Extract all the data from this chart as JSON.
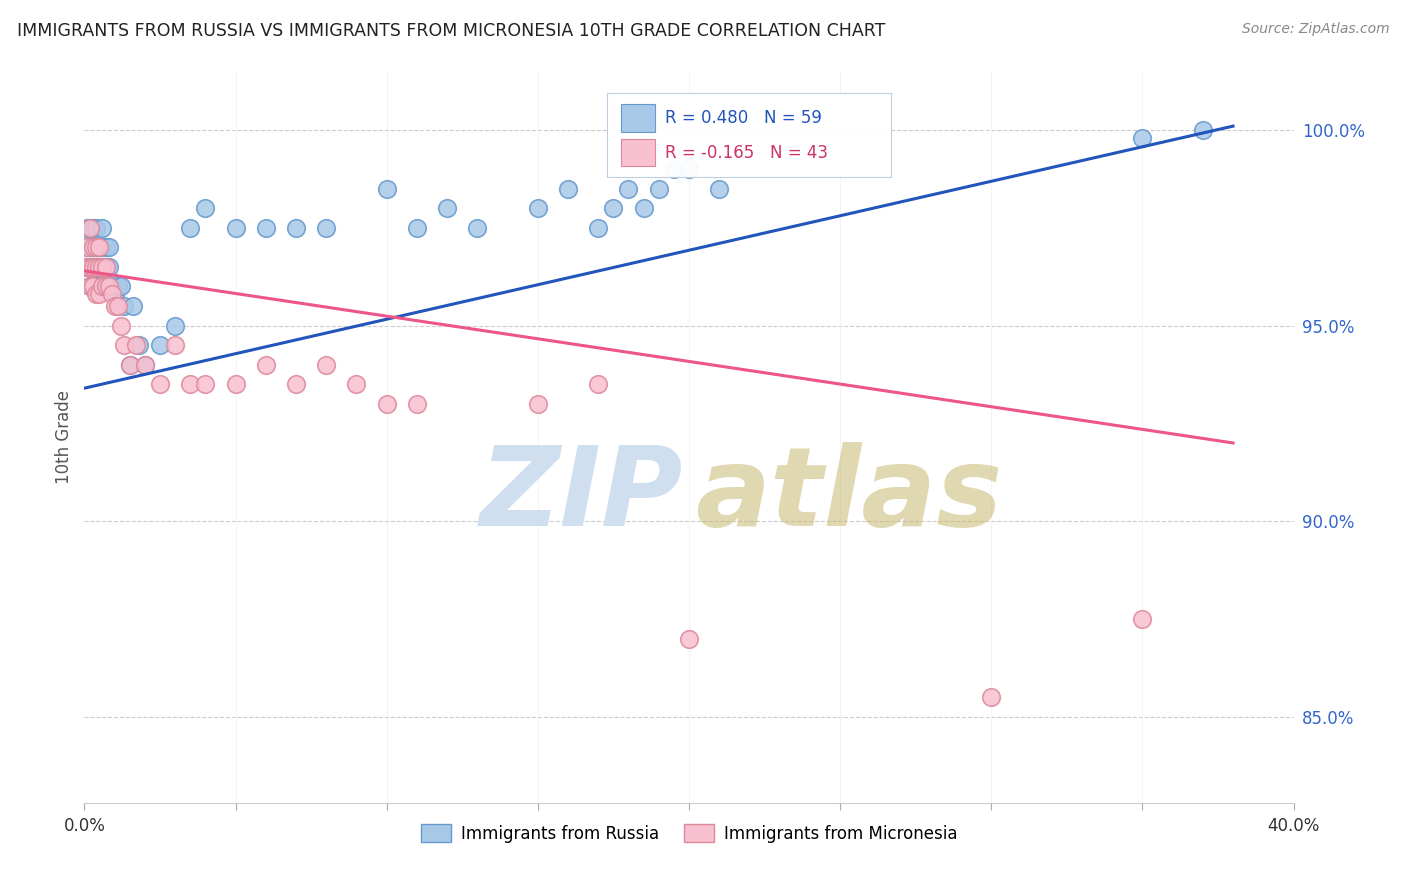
{
  "title": "IMMIGRANTS FROM RUSSIA VS IMMIGRANTS FROM MICRONESIA 10TH GRADE CORRELATION CHART",
  "source": "Source: ZipAtlas.com",
  "ylabel": "10th Grade",
  "xlim": [
    0.0,
    0.4
  ],
  "ylim": [
    0.828,
    1.015
  ],
  "ytick_values": [
    0.85,
    0.9,
    0.95,
    1.0
  ],
  "ytick_labels": [
    "85.0%",
    "90.0%",
    "95.0%",
    "100.0%"
  ],
  "russia_color": "#a8c8e8",
  "russia_edge_color": "#6699cc",
  "micronesia_color": "#f8c0d0",
  "micronesia_edge_color": "#dd8899",
  "russia_line_color": "#2255bb",
  "micronesia_line_color": "#ee5588",
  "russia_line_x0": 0.0,
  "russia_line_y0": 0.934,
  "russia_line_x1": 0.38,
  "russia_line_y1": 1.001,
  "micronesia_line_x0": 0.0,
  "micronesia_line_y0": 0.964,
  "micronesia_line_x1": 0.38,
  "micronesia_line_y1": 0.92,
  "watermark_zip_color": "#d0dff0",
  "watermark_atlas_color": "#c8b870",
  "legend_box_color": "#e8f0f8",
  "legend_box_edge": "#bbccdd",
  "legend_russia_text": "R = 0.480   N = 59",
  "legend_micronesia_text": "R = -0.165   N = 43",
  "russia_x": [
    0.001,
    0.001,
    0.001,
    0.002,
    0.002,
    0.002,
    0.002,
    0.003,
    0.003,
    0.003,
    0.003,
    0.004,
    0.004,
    0.004,
    0.004,
    0.005,
    0.005,
    0.005,
    0.006,
    0.006,
    0.006,
    0.007,
    0.007,
    0.007,
    0.008,
    0.008,
    0.009,
    0.01,
    0.011,
    0.012,
    0.013,
    0.015,
    0.016,
    0.018,
    0.02,
    0.025,
    0.03,
    0.035,
    0.04,
    0.05,
    0.06,
    0.07,
    0.08,
    0.1,
    0.11,
    0.12,
    0.13,
    0.15,
    0.16,
    0.17,
    0.175,
    0.18,
    0.185,
    0.19,
    0.195,
    0.2,
    0.21,
    0.35,
    0.37
  ],
  "russia_y": [
    0.97,
    0.975,
    0.965,
    0.96,
    0.97,
    0.975,
    0.965,
    0.965,
    0.97,
    0.96,
    0.975,
    0.965,
    0.97,
    0.975,
    0.96,
    0.96,
    0.97,
    0.965,
    0.965,
    0.97,
    0.975,
    0.965,
    0.97,
    0.96,
    0.965,
    0.97,
    0.96,
    0.958,
    0.96,
    0.96,
    0.955,
    0.94,
    0.955,
    0.945,
    0.94,
    0.945,
    0.95,
    0.975,
    0.98,
    0.975,
    0.975,
    0.975,
    0.975,
    0.985,
    0.975,
    0.98,
    0.975,
    0.98,
    0.985,
    0.975,
    0.98,
    0.985,
    0.98,
    0.985,
    0.99,
    0.99,
    0.985,
    0.998,
    1.0
  ],
  "micronesia_x": [
    0.001,
    0.001,
    0.002,
    0.002,
    0.002,
    0.003,
    0.003,
    0.003,
    0.004,
    0.004,
    0.004,
    0.005,
    0.005,
    0.005,
    0.006,
    0.006,
    0.007,
    0.007,
    0.008,
    0.009,
    0.01,
    0.011,
    0.012,
    0.013,
    0.015,
    0.017,
    0.02,
    0.025,
    0.03,
    0.035,
    0.04,
    0.05,
    0.06,
    0.07,
    0.08,
    0.09,
    0.1,
    0.11,
    0.15,
    0.17,
    0.2,
    0.3,
    0.35
  ],
  "micronesia_y": [
    0.97,
    0.965,
    0.975,
    0.965,
    0.96,
    0.97,
    0.965,
    0.96,
    0.97,
    0.965,
    0.958,
    0.965,
    0.97,
    0.958,
    0.965,
    0.96,
    0.96,
    0.965,
    0.96,
    0.958,
    0.955,
    0.955,
    0.95,
    0.945,
    0.94,
    0.945,
    0.94,
    0.935,
    0.945,
    0.935,
    0.935,
    0.935,
    0.94,
    0.935,
    0.94,
    0.935,
    0.93,
    0.93,
    0.93,
    0.935,
    0.87,
    0.855,
    0.875
  ]
}
